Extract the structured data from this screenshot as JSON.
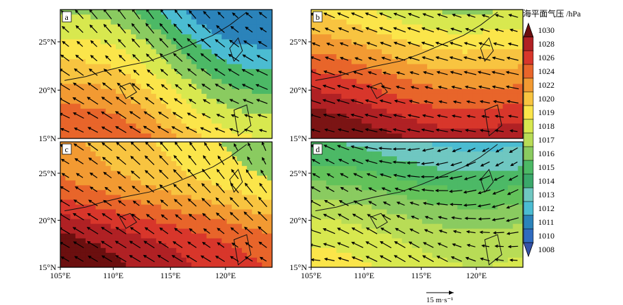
{
  "figure": {
    "panels": [
      {
        "label": "a",
        "palette_start": 4,
        "colors": [
          "#2b83ba",
          "#4bbcd2",
          "#4cb966",
          "#8acb60",
          "#d8e84f",
          "#fbe54a",
          "#f8c440",
          "#f29a32",
          "#e8652a"
        ]
      },
      {
        "label": "b",
        "palette_start": 8,
        "colors": [
          "#8acb60",
          "#d8e84f",
          "#fbe54a",
          "#f8c440",
          "#f29a32",
          "#e8652a",
          "#d8362b",
          "#b02124",
          "#7b1414"
        ]
      },
      {
        "label": "c",
        "palette_start": 8,
        "colors": [
          "#4bbcd2",
          "#8acb60",
          "#fbe54a",
          "#f8c440",
          "#f29a32",
          "#e8652a",
          "#d8362b",
          "#b02124",
          "#6b0f0f"
        ]
      },
      {
        "label": "d",
        "palette_start": 4,
        "colors": [
          "#4bbcd2",
          "#6fc7c1",
          "#4cb966",
          "#62c25a",
          "#8acb60",
          "#b8dc56",
          "#d8e84f",
          "#fbe54a",
          "#f8c440"
        ]
      }
    ],
    "x_ticks": [
      "105°E",
      "110°E",
      "115°E",
      "120°E"
    ],
    "y_ticks": [
      "15°N",
      "20°N",
      "25°N"
    ],
    "colorbar": {
      "title": "海平面气压 /hPa",
      "levels": [
        "1030",
        "1028",
        "1026",
        "1024",
        "1022",
        "1020",
        "1019",
        "1018",
        "1017",
        "1016",
        "1015",
        "1014",
        "1013",
        "1012",
        "1011",
        "1010",
        "1008"
      ],
      "colors": [
        "#6b0f0f",
        "#b02124",
        "#d8362b",
        "#e8652a",
        "#f29a32",
        "#f8c440",
        "#fbe54a",
        "#d8e84f",
        "#b8dc56",
        "#8acb60",
        "#4cb966",
        "#3aa86a",
        "#6fc7c1",
        "#4bbcd2",
        "#2b83ba",
        "#2f6bbf",
        "#3452a8"
      ]
    },
    "reference_vector": {
      "label": "15 m·s⁻¹"
    },
    "colors": {
      "vector": "#000000",
      "coast": "#111111",
      "frame": "#000000"
    }
  }
}
